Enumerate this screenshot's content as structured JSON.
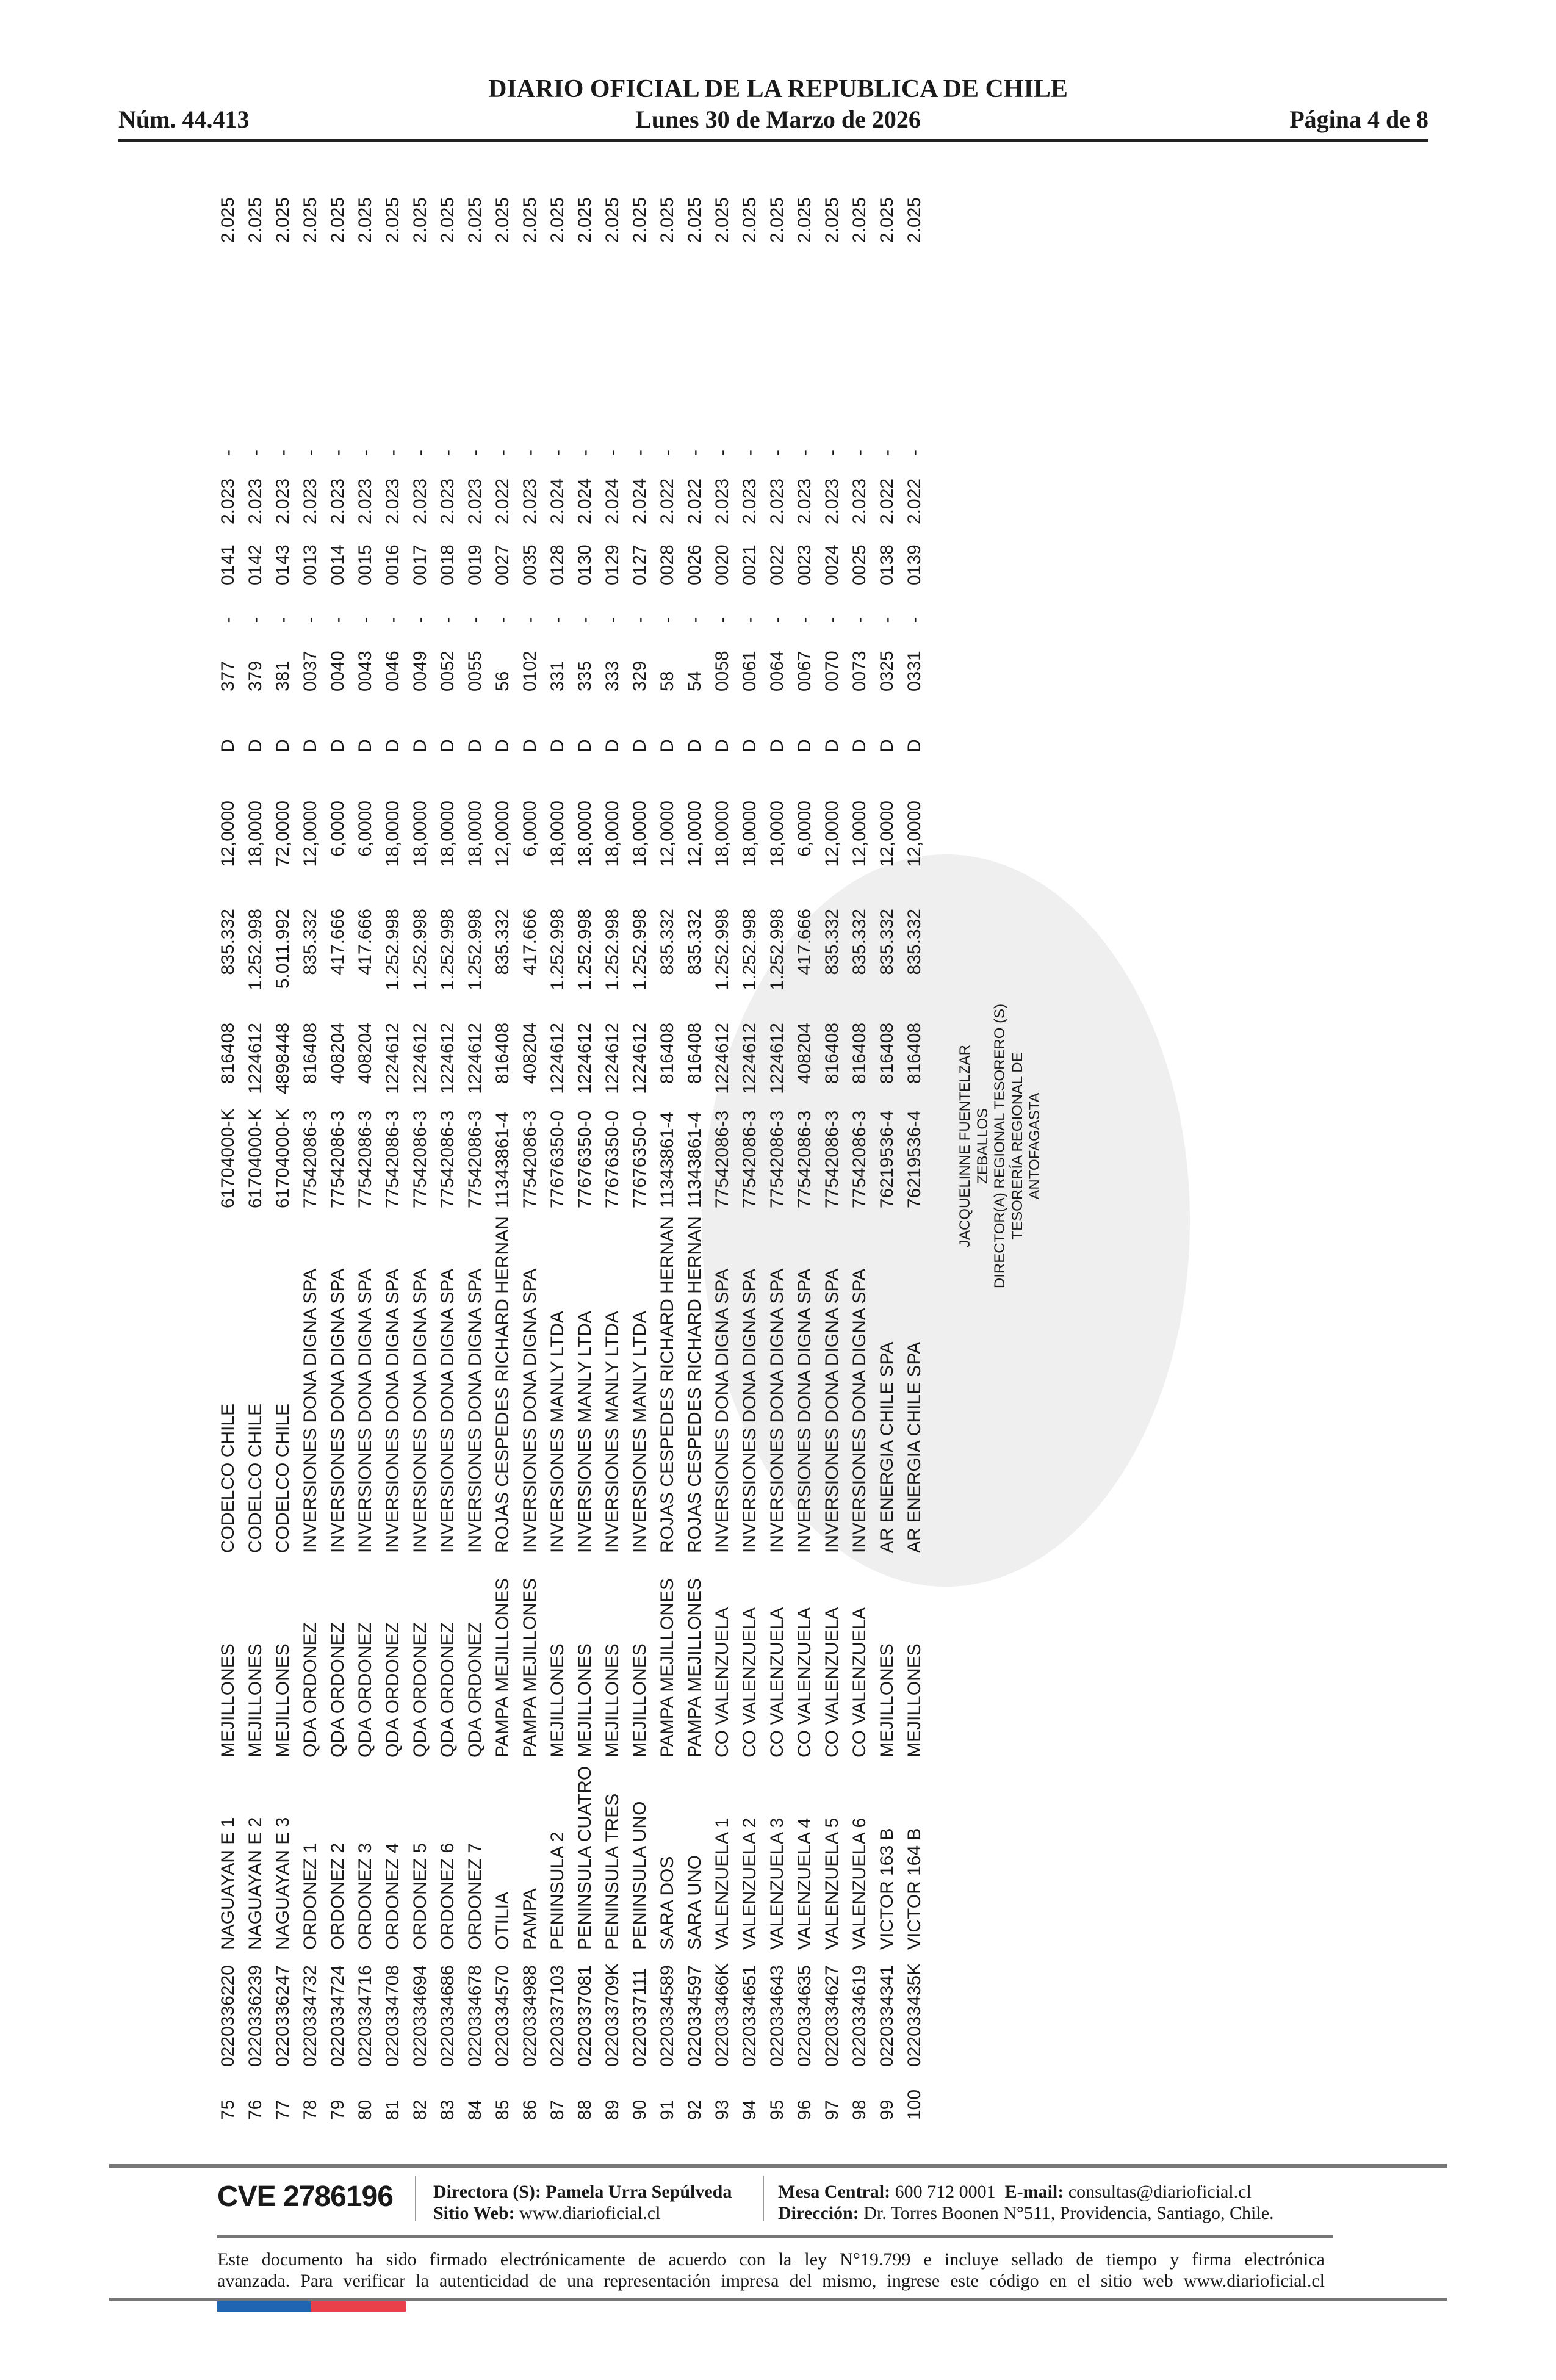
{
  "header": {
    "title": "DIARIO OFICIAL DE LA REPUBLICA DE CHILE",
    "issue_number": "Núm. 44.413",
    "date": "Lunes 30 de Marzo de 2026",
    "page": "Página 4 de 8"
  },
  "table": {
    "rows": [
      [
        "75",
        "0220336220",
        "NAGUAYAN E 1",
        "MEJILLONES",
        "CODELCO CHILE",
        "61704000-K",
        "816408",
        "835.332",
        "12,0000",
        "D",
        "377",
        "-",
        "0141",
        "2.023",
        "-",
        "2.025"
      ],
      [
        "76",
        "0220336239",
        "NAGUAYAN E 2",
        "MEJILLONES",
        "CODELCO CHILE",
        "61704000-K",
        "1224612",
        "1.252.998",
        "18,0000",
        "D",
        "379",
        "-",
        "0142",
        "2.023",
        "-",
        "2.025"
      ],
      [
        "77",
        "0220336247",
        "NAGUAYAN E 3",
        "MEJILLONES",
        "CODELCO CHILE",
        "61704000-K",
        "4898448",
        "5.011.992",
        "72,0000",
        "D",
        "381",
        "-",
        "0143",
        "2.023",
        "-",
        "2.025"
      ],
      [
        "78",
        "0220334732",
        "ORDONEZ 1",
        "QDA ORDONEZ",
        "INVERSIONES DONA DIGNA SPA",
        "77542086-3",
        "816408",
        "835.332",
        "12,0000",
        "D",
        "0037",
        "-",
        "0013",
        "2.023",
        "-",
        "2.025"
      ],
      [
        "79",
        "0220334724",
        "ORDONEZ 2",
        "QDA ORDONEZ",
        "INVERSIONES DONA DIGNA SPA",
        "77542086-3",
        "408204",
        "417.666",
        "6,0000",
        "D",
        "0040",
        "-",
        "0014",
        "2.023",
        "-",
        "2.025"
      ],
      [
        "80",
        "0220334716",
        "ORDONEZ 3",
        "QDA ORDONEZ",
        "INVERSIONES DONA DIGNA SPA",
        "77542086-3",
        "408204",
        "417.666",
        "6,0000",
        "D",
        "0043",
        "-",
        "0015",
        "2.023",
        "-",
        "2.025"
      ],
      [
        "81",
        "0220334708",
        "ORDONEZ 4",
        "QDA ORDONEZ",
        "INVERSIONES DONA DIGNA SPA",
        "77542086-3",
        "1224612",
        "1.252.998",
        "18,0000",
        "D",
        "0046",
        "-",
        "0016",
        "2.023",
        "-",
        "2.025"
      ],
      [
        "82",
        "0220334694",
        "ORDONEZ 5",
        "QDA ORDONEZ",
        "INVERSIONES DONA DIGNA SPA",
        "77542086-3",
        "1224612",
        "1.252.998",
        "18,0000",
        "D",
        "0049",
        "-",
        "0017",
        "2.023",
        "-",
        "2.025"
      ],
      [
        "83",
        "0220334686",
        "ORDONEZ 6",
        "QDA ORDONEZ",
        "INVERSIONES DONA DIGNA SPA",
        "77542086-3",
        "1224612",
        "1.252.998",
        "18,0000",
        "D",
        "0052",
        "-",
        "0018",
        "2.023",
        "-",
        "2.025"
      ],
      [
        "84",
        "0220334678",
        "ORDONEZ 7",
        "QDA ORDONEZ",
        "INVERSIONES DONA DIGNA SPA",
        "77542086-3",
        "1224612",
        "1.252.998",
        "18,0000",
        "D",
        "0055",
        "-",
        "0019",
        "2.023",
        "-",
        "2.025"
      ],
      [
        "85",
        "0220334570",
        "OTILIA",
        "PAMPA MEJILLONES",
        "ROJAS CESPEDES RICHARD HERNAN",
        "11343861-4",
        "816408",
        "835.332",
        "12,0000",
        "D",
        "56",
        "-",
        "0027",
        "2.022",
        "-",
        "2.025"
      ],
      [
        "86",
        "0220334988",
        "PAMPA",
        "PAMPA MEJILLONES",
        "INVERSIONES DONA DIGNA SPA",
        "77542086-3",
        "408204",
        "417.666",
        "6,0000",
        "D",
        "0102",
        "-",
        "0035",
        "2.023",
        "-",
        "2.025"
      ],
      [
        "87",
        "0220337103",
        "PENINSULA 2",
        "MEJILLONES",
        "INVERSIONES MANLY LTDA",
        "77676350-0",
        "1224612",
        "1.252.998",
        "18,0000",
        "D",
        "331",
        "-",
        "0128",
        "2.024",
        "-",
        "2.025"
      ],
      [
        "88",
        "0220337081",
        "PENINSULA CUATRO",
        "MEJILLONES",
        "INVERSIONES MANLY LTDA",
        "77676350-0",
        "1224612",
        "1.252.998",
        "18,0000",
        "D",
        "335",
        "-",
        "0130",
        "2.024",
        "-",
        "2.025"
      ],
      [
        "89",
        "022033709K",
        "PENINSULA TRES",
        "MEJILLONES",
        "INVERSIONES MANLY LTDA",
        "77676350-0",
        "1224612",
        "1.252.998",
        "18,0000",
        "D",
        "333",
        "-",
        "0129",
        "2.024",
        "-",
        "2.025"
      ],
      [
        "90",
        "0220337111",
        "PENINSULA UNO",
        "MEJILLONES",
        "INVERSIONES MANLY LTDA",
        "77676350-0",
        "1224612",
        "1.252.998",
        "18,0000",
        "D",
        "329",
        "-",
        "0127",
        "2.024",
        "-",
        "2.025"
      ],
      [
        "91",
        "0220334589",
        "SARA DOS",
        "PAMPA MEJILLONES",
        "ROJAS CESPEDES RICHARD HERNAN",
        "11343861-4",
        "816408",
        "835.332",
        "12,0000",
        "D",
        "58",
        "-",
        "0028",
        "2.022",
        "-",
        "2.025"
      ],
      [
        "92",
        "0220334597",
        "SARA UNO",
        "PAMPA MEJILLONES",
        "ROJAS CESPEDES RICHARD HERNAN",
        "11343861-4",
        "816408",
        "835.332",
        "12,0000",
        "D",
        "54",
        "-",
        "0026",
        "2.022",
        "-",
        "2.025"
      ],
      [
        "93",
        "022033466K",
        "VALENZUELA 1",
        "CO VALENZUELA",
        "INVERSIONES DONA DIGNA SPA",
        "77542086-3",
        "1224612",
        "1.252.998",
        "18,0000",
        "D",
        "0058",
        "-",
        "0020",
        "2.023",
        "-",
        "2.025"
      ],
      [
        "94",
        "0220334651",
        "VALENZUELA 2",
        "CO VALENZUELA",
        "INVERSIONES DONA DIGNA SPA",
        "77542086-3",
        "1224612",
        "1.252.998",
        "18,0000",
        "D",
        "0061",
        "-",
        "0021",
        "2.023",
        "-",
        "2.025"
      ],
      [
        "95",
        "0220334643",
        "VALENZUELA 3",
        "CO VALENZUELA",
        "INVERSIONES DONA DIGNA SPA",
        "77542086-3",
        "1224612",
        "1.252.998",
        "18,0000",
        "D",
        "0064",
        "-",
        "0022",
        "2.023",
        "-",
        "2.025"
      ],
      [
        "96",
        "0220334635",
        "VALENZUELA 4",
        "CO VALENZUELA",
        "INVERSIONES DONA DIGNA SPA",
        "77542086-3",
        "408204",
        "417.666",
        "6,0000",
        "D",
        "0067",
        "-",
        "0023",
        "2.023",
        "-",
        "2.025"
      ],
      [
        "97",
        "0220334627",
        "VALENZUELA 5",
        "CO VALENZUELA",
        "INVERSIONES DONA DIGNA SPA",
        "77542086-3",
        "816408",
        "835.332",
        "12,0000",
        "D",
        "0070",
        "-",
        "0024",
        "2.023",
        "-",
        "2.025"
      ],
      [
        "98",
        "0220334619",
        "VALENZUELA 6",
        "CO VALENZUELA",
        "INVERSIONES DONA DIGNA SPA",
        "77542086-3",
        "816408",
        "835.332",
        "12,0000",
        "D",
        "0073",
        "-",
        "0025",
        "2.023",
        "-",
        "2.025"
      ],
      [
        "99",
        "0220334341",
        "VICTOR 163 B",
        "MEJILLONES",
        "AR ENERGIA CHILE SPA",
        "76219536-4",
        "816408",
        "835.332",
        "12,0000",
        "D",
        "0325",
        "-",
        "0138",
        "2.022",
        "-",
        "2.025"
      ],
      [
        "100",
        "022033435K",
        "VICTOR 164 B",
        "MEJILLONES",
        "AR ENERGIA CHILE SPA",
        "76219536-4",
        "816408",
        "835.332",
        "12,0000",
        "D",
        "0331",
        "-",
        "0139",
        "2.022",
        "-",
        "2.025"
      ]
    ]
  },
  "signature": {
    "lines": [
      "JACQUELINNE FUENTELZAR",
      "ZEBALLOS",
      "DIRECTOR(A) REGIONAL TESORERO (S)",
      "TESORERÍA REGIONAL DE",
      "ANTOFAGASTA"
    ]
  },
  "footer": {
    "cve": "CVE 2786196",
    "director_label": "Directora (S):",
    "director_name": "Pamela Urra Sepúlveda",
    "website_label": "Sitio Web:",
    "website": "www.diarioficial.cl",
    "phone_label": "Mesa Central:",
    "phone": "600 712 0001",
    "email_label": "E-mail:",
    "email": "consultas@diarioficial.cl",
    "address_label": "Dirección:",
    "address": "Dr. Torres Boonen N°511, Providencia, Santiago, Chile.",
    "legal_line1": "Este documento ha sido firmado electrónicamente de acuerdo con la ley N°19.799 e incluye sellado de tiempo y firma electrónica",
    "legal_line2": "avanzada. Para verificar la autenticidad de una representación impresa del mismo, ingrese este código en el sitio web www.diarioficial.cl",
    "flag_colors": [
      "#1f65b1",
      "#e8414a"
    ]
  }
}
